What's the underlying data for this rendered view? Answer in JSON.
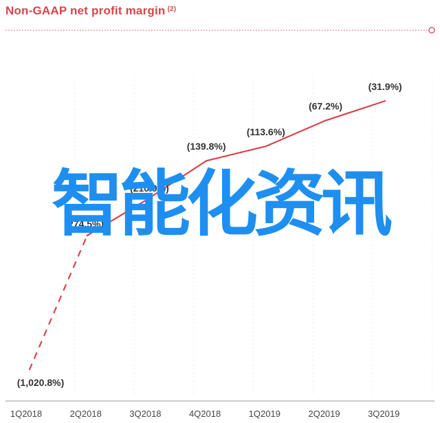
{
  "title": "Non-GAAP net profit margin",
  "title_note": "(2)",
  "watermark": "智能化资讯",
  "colors": {
    "accent": "#d9434b",
    "watermark": "#1e8ff0",
    "grid": "#ececec",
    "text": "#333333"
  },
  "chart_data": {
    "type": "line",
    "title": "Non-GAAP net profit margin",
    "x": [
      "1Q2018",
      "2Q2018",
      "3Q2018",
      "4Q2018",
      "1Q2019",
      "2Q2019",
      "3Q2019"
    ],
    "values": [
      -1020.8,
      -274.5,
      -210.0,
      -139.8,
      -113.6,
      -67.2,
      -31.9
    ],
    "data_labels": [
      "(1,020.8%)",
      "(274.5%)",
      "(210.0%)",
      "(139.8%)",
      "(113.6%)",
      "(67.2%)",
      "(31.9%)"
    ],
    "line_style": [
      "dashed",
      "solid",
      "solid",
      "solid",
      "solid",
      "solid"
    ],
    "grid": true,
    "xlabel": "",
    "ylabel": ""
  }
}
